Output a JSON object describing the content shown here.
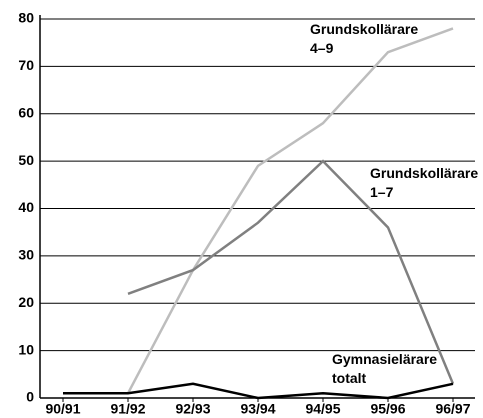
{
  "chart_data": {
    "type": "line",
    "categories": [
      "90/91",
      "91/92",
      "92/93",
      "93/94",
      "94/95",
      "95/96",
      "96/97"
    ],
    "series": [
      {
        "name": "Grundskollärare 4–9",
        "color": "#bdbdbd",
        "values": [
          null,
          1,
          27,
          49,
          58,
          73,
          78
        ]
      },
      {
        "name": "Grundskollärare 1–7",
        "color": "#808080",
        "values": [
          null,
          22,
          27,
          37,
          50,
          36,
          3
        ]
      },
      {
        "name": "Gymnasielärare totalt",
        "color": "#000000",
        "values": [
          1,
          1,
          3,
          0,
          1,
          0,
          3
        ]
      }
    ],
    "ylim": [
      0,
      80
    ],
    "yticks": [
      0,
      10,
      20,
      30,
      40,
      50,
      60,
      70,
      80
    ],
    "grid": true
  }
}
